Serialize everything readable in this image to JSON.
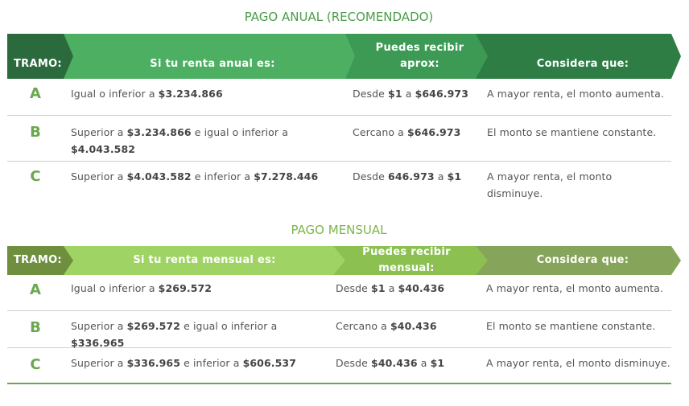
{
  "anual": {
    "title": "PAGO ANUAL (RECOMENDADO)",
    "headers": {
      "tramo": "TRAMO:",
      "renta": "Si tu renta anual es:",
      "recibir_line1": "Puedes recibir",
      "recibir_line2": "aprox:",
      "considera": "Considera que:"
    },
    "colors": {
      "tramo": "#2b6a3c",
      "renta": "#4caf62",
      "recibir": "#3d9a54",
      "considera": "#2e7d45"
    },
    "rows": [
      {
        "tramo": "A",
        "renta": [
          {
            "t": "Igual o inferior a "
          },
          {
            "t": "$3.234.866",
            "b": true
          }
        ],
        "recibir": [
          {
            "t": "Desde "
          },
          {
            "t": "$1",
            "b": true
          },
          {
            "t": " a "
          },
          {
            "t": "$646.973",
            "b": true
          }
        ],
        "considera": "A mayor renta, el monto aumenta."
      },
      {
        "tramo": "B",
        "renta": [
          {
            "t": "Superior a "
          },
          {
            "t": "$3.234.866",
            "b": true
          },
          {
            "t": " e igual o inferior a "
          },
          {
            "t": "$4.043.582",
            "b": true
          }
        ],
        "recibir": [
          {
            "t": "Cercano a "
          },
          {
            "t": "$646.973",
            "b": true
          }
        ],
        "considera": "El monto se mantiene constante."
      },
      {
        "tramo": "C",
        "renta": [
          {
            "t": "Superior a "
          },
          {
            "t": "$4.043.582",
            "b": true
          },
          {
            "t": " e inferior a "
          },
          {
            "t": "$7.278.446",
            "b": true
          }
        ],
        "recibir": [
          {
            "t": "Desde "
          },
          {
            "t": "646.973",
            "b": true
          },
          {
            "t": " a "
          },
          {
            "t": "$1",
            "b": true
          }
        ],
        "considera": "A mayor renta, el monto disminuye."
      }
    ]
  },
  "mensual": {
    "title": "PAGO MENSUAL",
    "headers": {
      "tramo": "TRAMO:",
      "renta": "Si tu renta mensual es:",
      "recibir": "Puedes recibir mensual:",
      "considera": "Considera que:"
    },
    "colors": {
      "tramo": "#6f8f3f",
      "renta": "#9fd464",
      "recibir": "#8cc152",
      "considera": "#86a45a"
    },
    "rows": [
      {
        "tramo": "A",
        "renta": [
          {
            "t": "Igual o inferior a "
          },
          {
            "t": "$269.572",
            "b": true
          }
        ],
        "recibir": [
          {
            "t": "Desde "
          },
          {
            "t": "$1",
            "b": true
          },
          {
            "t": " a "
          },
          {
            "t": "$40.436",
            "b": true
          }
        ],
        "considera": "A mayor renta, el monto aumenta."
      },
      {
        "tramo": "B",
        "renta": [
          {
            "t": "Superior a "
          },
          {
            "t": "$269.572",
            "b": true
          },
          {
            "t": " e igual o inferior a "
          },
          {
            "t": "$336.965",
            "b": true
          }
        ],
        "recibir": [
          {
            "t": "Cercano a "
          },
          {
            "t": "$40.436",
            "b": true
          }
        ],
        "considera": "El monto se mantiene constante."
      },
      {
        "tramo": "C",
        "renta": [
          {
            "t": "Superior a "
          },
          {
            "t": "$336.965",
            "b": true
          },
          {
            "t": " e inferior a "
          },
          {
            "t": "$606.537",
            "b": true
          }
        ],
        "recibir": [
          {
            "t": "Desde "
          },
          {
            "t": "$40.436",
            "b": true
          },
          {
            "t": " a "
          },
          {
            "t": "$1",
            "b": true
          }
        ],
        "considera": "A mayor renta, el monto disminuye."
      }
    ]
  }
}
